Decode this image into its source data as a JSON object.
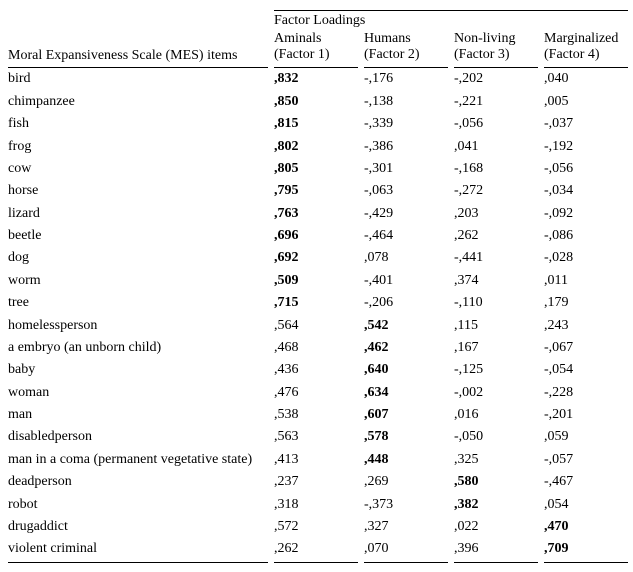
{
  "headers": {
    "super": "Factor Loadings",
    "row": "Moral Expansiveness Scale (MES) items",
    "f1_line1": "Aminals",
    "f1_line2": "(Factor 1)",
    "f2_line1": "Humans",
    "f2_line2": "(Factor 2)",
    "f3_line1": "Non-living",
    "f3_line2": "(Factor 3)",
    "f4_line1": "Marginalized",
    "f4_line2": "(Factor 4)"
  },
  "rows": [
    {
      "item": "bird",
      "f1": ",832",
      "f2": "-,176",
      "f3": "-,202",
      "f4": ",040",
      "bold": 1
    },
    {
      "item": "chimpanzee",
      "f1": ",850",
      "f2": "-,138",
      "f3": "-,221",
      "f4": ",005",
      "bold": 1
    },
    {
      "item": "fish",
      "f1": ",815",
      "f2": "-,339",
      "f3": "-,056",
      "f4": "-,037",
      "bold": 1
    },
    {
      "item": "frog",
      "f1": ",802",
      "f2": "-,386",
      "f3": ",041",
      "f4": "-,192",
      "bold": 1
    },
    {
      "item": "cow",
      "f1": ",805",
      "f2": "-,301",
      "f3": "-,168",
      "f4": "-,056",
      "bold": 1
    },
    {
      "item": "horse",
      "f1": ",795",
      "f2": "-,063",
      "f3": "-,272",
      "f4": "-,034",
      "bold": 1
    },
    {
      "item": "lizard",
      "f1": ",763",
      "f2": "-,429",
      "f3": ",203",
      "f4": "-,092",
      "bold": 1
    },
    {
      "item": "beetle",
      "f1": ",696",
      "f2": "-,464",
      "f3": ",262",
      "f4": "-,086",
      "bold": 1
    },
    {
      "item": "dog",
      "f1": ",692",
      "f2": ",078",
      "f3": "-,441",
      "f4": "-,028",
      "bold": 1
    },
    {
      "item": "worm",
      "f1": ",509",
      "f2": "-,401",
      "f3": ",374",
      "f4": ",011",
      "bold": 1
    },
    {
      "item": "tree",
      "f1": ",715",
      "f2": "-,206",
      "f3": "-,110",
      "f4": ",179",
      "bold": 1
    },
    {
      "item": "homelessperson",
      "f1": ",564",
      "f2": ",542",
      "f3": ",115",
      "f4": ",243",
      "bold": 2
    },
    {
      "item": "a embryo (an unborn child)",
      "f1": ",468",
      "f2": ",462",
      "f3": ",167",
      "f4": "-,067",
      "bold": 2
    },
    {
      "item": "baby",
      "f1": ",436",
      "f2": ",640",
      "f3": "-,125",
      "f4": "-,054",
      "bold": 2
    },
    {
      "item": "woman",
      "f1": ",476",
      "f2": ",634",
      "f3": "-,002",
      "f4": "-,228",
      "bold": 2
    },
    {
      "item": "man",
      "f1": ",538",
      "f2": ",607",
      "f3": ",016",
      "f4": "-,201",
      "bold": 2
    },
    {
      "item": "disabledperson",
      "f1": ",563",
      "f2": ",578",
      "f3": "-,050",
      "f4": ",059",
      "bold": 2
    },
    {
      "item": "man in a coma (permanent vegetative state)",
      "f1": ",413",
      "f2": ",448",
      "f3": ",325",
      "f4": "-,057",
      "bold": 2
    },
    {
      "item": "deadperson",
      "f1": ",237",
      "f2": ",269",
      "f3": ",580",
      "f4": "-,467",
      "bold": 3
    },
    {
      "item": "robot",
      "f1": ",318",
      "f2": "-,373",
      "f3": ",382",
      "f4": ",054",
      "bold": 3
    },
    {
      "item": "drugaddict",
      "f1": ",572",
      "f2": ",327",
      "f3": ",022",
      "f4": ",470",
      "bold": 4
    },
    {
      "item": "violent criminal",
      "f1": ",262",
      "f2": ",070",
      "f3": ",396",
      "f4": ",709",
      "bold": 4
    }
  ],
  "style": {
    "font_family": "Times New Roman",
    "font_size_pt": 11,
    "text_color": "#000000",
    "background_color": "#ffffff",
    "border_color": "#000000"
  }
}
